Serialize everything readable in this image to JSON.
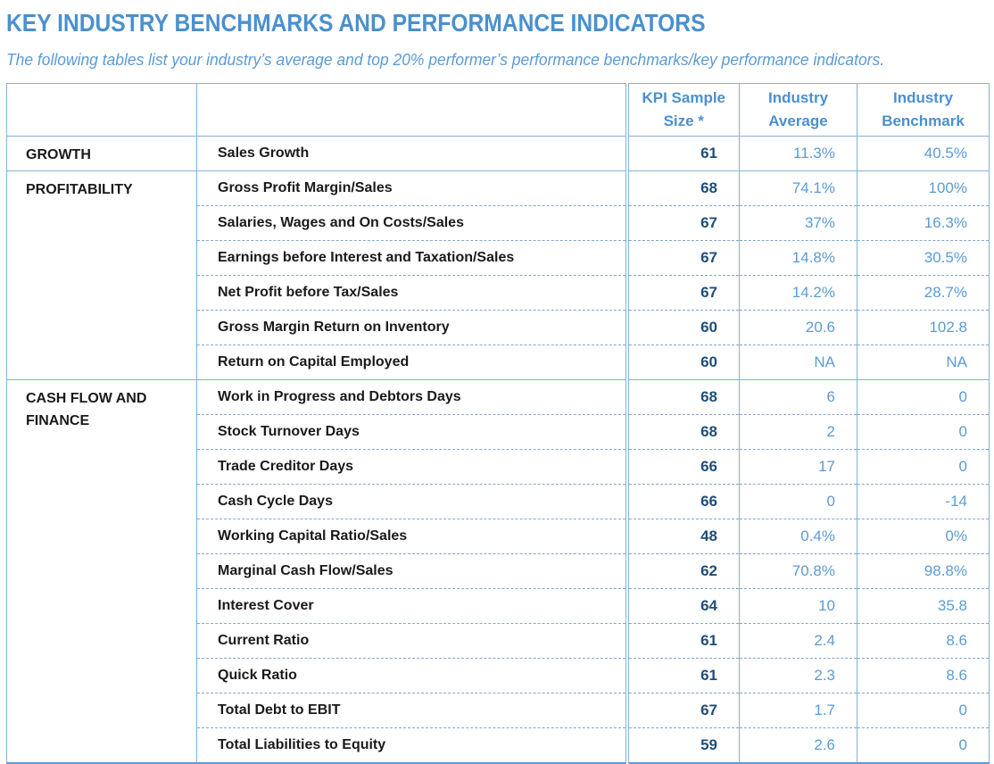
{
  "page": {
    "title": "KEY INDUSTRY BENCHMARKS AND PERFORMANCE INDICATORS",
    "subtitle": "The following tables list your industry’s average and top 20% performer’s performance benchmarks/key performance indicators."
  },
  "colors": {
    "accent_blue": "#4a90ce",
    "value_blue": "#5b9bd5",
    "dark_value_blue": "#1f4e79",
    "rule_blue": "#84b1dc"
  },
  "table": {
    "headers": [
      "KPI Sample Size *",
      "Industry Average",
      "Industry Benchmark"
    ],
    "sections": [
      {
        "category": "GROWTH",
        "rows": [
          {
            "metric": "Sales Growth",
            "sample": "61",
            "average": "11.3%",
            "benchmark": "40.5%"
          }
        ]
      },
      {
        "category": "PROFITABILITY",
        "rows": [
          {
            "metric": "Gross Profit Margin/Sales",
            "sample": "68",
            "average": "74.1%",
            "benchmark": "100%"
          },
          {
            "metric": "Salaries, Wages and On Costs/Sales",
            "sample": "67",
            "average": "37%",
            "benchmark": "16.3%"
          },
          {
            "metric": "Earnings before Interest and Taxation/Sales",
            "sample": "67",
            "average": "14.8%",
            "benchmark": "30.5%"
          },
          {
            "metric": "Net Profit before Tax/Sales",
            "sample": "67",
            "average": "14.2%",
            "benchmark": "28.7%"
          },
          {
            "metric": "Gross Margin Return on Inventory",
            "sample": "60",
            "average": "20.6",
            "benchmark": "102.8"
          },
          {
            "metric": "Return on Capital Employed",
            "sample": "60",
            "average": "NA",
            "benchmark": "NA"
          }
        ]
      },
      {
        "category": "CASH FLOW AND FINANCE",
        "rows": [
          {
            "metric": "Work in Progress and Debtors Days",
            "sample": "68",
            "average": "6",
            "benchmark": "0"
          },
          {
            "metric": "Stock Turnover Days",
            "sample": "68",
            "average": "2",
            "benchmark": "0"
          },
          {
            "metric": "Trade Creditor Days",
            "sample": "66",
            "average": "17",
            "benchmark": "0"
          },
          {
            "metric": "Cash Cycle Days",
            "sample": "66",
            "average": "0",
            "benchmark": "-14"
          },
          {
            "metric": "Working Capital Ratio/Sales",
            "sample": "48",
            "average": "0.4%",
            "benchmark": "0%"
          },
          {
            "metric": "Marginal Cash Flow/Sales",
            "sample": "62",
            "average": "70.8%",
            "benchmark": "98.8%"
          },
          {
            "metric": "Interest Cover",
            "sample": "64",
            "average": "10",
            "benchmark": "35.8"
          },
          {
            "metric": "Current Ratio",
            "sample": "61",
            "average": "2.4",
            "benchmark": "8.6"
          },
          {
            "metric": "Quick Ratio",
            "sample": "61",
            "average": "2.3",
            "benchmark": "8.6"
          },
          {
            "metric": "Total Debt to EBIT",
            "sample": "67",
            "average": "1.7",
            "benchmark": "0"
          },
          {
            "metric": "Total Liabilities to Equity",
            "sample": "59",
            "average": "2.6",
            "benchmark": "0"
          }
        ]
      }
    ]
  }
}
